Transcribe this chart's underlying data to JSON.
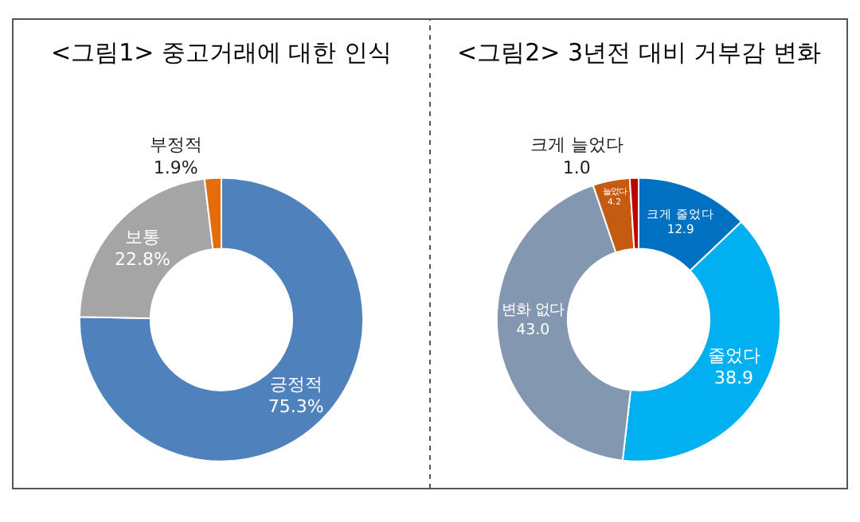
{
  "chart_data": [
    {
      "type": "donut",
      "title": "<그림1> 중고거래에 대한 인식",
      "categories": [
        "긍정적",
        "보통",
        "부정적"
      ],
      "values": [
        75.3,
        22.8,
        1.9
      ],
      "value_labels": [
        "75.3%",
        "22.8%",
        "1.9%"
      ],
      "colors": [
        "#4f81bd",
        "#a5a5a5",
        "#e46c0a"
      ]
    },
    {
      "type": "donut",
      "title": "<그림2> 3년전 대비 거부감 변화",
      "categories": [
        "크게 줄었다",
        "줄었다",
        "변화 없다",
        "늘었다",
        "크게 늘었다"
      ],
      "values": [
        12.9,
        38.9,
        43.0,
        4.2,
        1.0
      ],
      "value_labels": [
        "12.9",
        "38.9",
        "43.0",
        "4.2",
        "1.0"
      ],
      "colors": [
        "#0070c0",
        "#00b0f0",
        "#8497b0",
        "#c55a11",
        "#c00000"
      ]
    }
  ]
}
